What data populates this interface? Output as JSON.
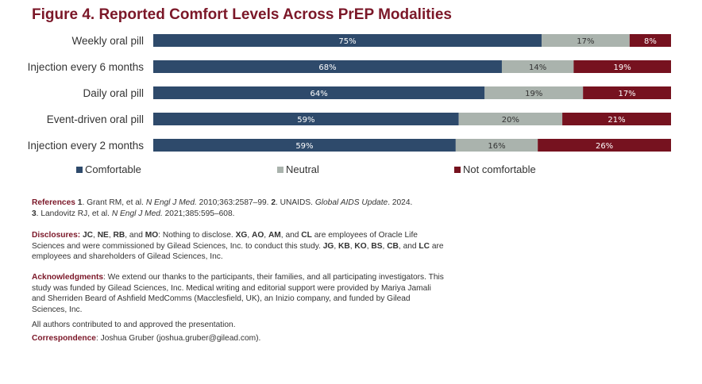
{
  "title": "Figure 4. Reported Comfort Levels Across PrEP Modalities",
  "colors": {
    "comfortable": "#2e4a6b",
    "neutral": "#aab3ad",
    "not_comfortable": "#76121f"
  },
  "chart_data": {
    "type": "bar",
    "orientation": "horizontal",
    "stacked": true,
    "categories": [
      "Weekly oral pill",
      "Injection every 6 months",
      "Daily oral pill",
      "Event-driven oral pill",
      "Injection every 2 months"
    ],
    "series": [
      {
        "name": "Comfortable",
        "values": [
          75,
          68,
          64,
          59,
          59
        ],
        "labels": [
          "75%",
          "68%",
          "64%",
          "59%",
          "59%"
        ]
      },
      {
        "name": "Neutral",
        "values": [
          17,
          14,
          19,
          20,
          16
        ],
        "labels": [
          "17%",
          "14%",
          "19%",
          "20%",
          "16%"
        ]
      },
      {
        "name": "Not comfortable",
        "values": [
          8,
          19,
          17,
          21,
          26
        ],
        "labels": [
          "8%",
          "19%",
          "17%",
          "21%",
          "26%"
        ]
      }
    ],
    "legend_position": "bottom"
  },
  "legend": [
    "Comfortable",
    "Neutral",
    "Not comfortable"
  ],
  "references": {
    "heading": "References",
    "n1": "1",
    "t1": ". Grant RM, et al. ",
    "j1": "N Engl J Med.",
    "t1b": " 2010;363:2587–99. ",
    "n2": "2",
    "t2": ". UNAIDS. ",
    "j2": "Global AIDS Update",
    "t2b": ". 2024.",
    "n3": "3",
    "t3": ". Landovitz RJ, et al. ",
    "j3": "N Engl J Med.",
    "t3b": " 2021;385:595–608."
  },
  "disclosures": {
    "heading": "Disclosures:",
    "i1": "JC",
    "s1": ", ",
    "i2": "NE",
    "s2": ", ",
    "i3": "RB",
    "s3": ", and ",
    "i4": "MO",
    "s4": ": Nothing to disclose. ",
    "i5": "XG",
    "s5": ", ",
    "i6": "AO",
    "s6": ", ",
    "i7": "AM",
    "s7": ", and ",
    "i8": "CL",
    "s8": " are employees of Oracle Life Sciences and were commissioned by Gilead Sciences, Inc. to conduct this study. ",
    "i9": "JG",
    "s9": ", ",
    "i10": "KB",
    "s10": ", ",
    "i11": "KO",
    "s11": ", ",
    "i12": "BS",
    "s12": ", ",
    "i13": "CB",
    "s13": ", and ",
    "i14": "LC",
    "s14": " are employees and shareholders of Gilead Sciences, Inc."
  },
  "acknowledgments": {
    "heading": "Acknowledgments",
    "text": ": We extend our thanks to the participants, their families, and all participating investigators. This study was funded by Gilead Sciences, Inc. Medical writing and editorial support were provided by Mariya Jamali and Sherriden Beard of Ashfield MedComms (Macclesfield, UK), an Inizio company, and funded by Gilead Sciences, Inc."
  },
  "contribution": "All authors contributed to and approved the presentation.",
  "correspondence": {
    "heading": "Correspondence",
    "text": ": Joshua Gruber (joshua.gruber@gilead.com)."
  }
}
